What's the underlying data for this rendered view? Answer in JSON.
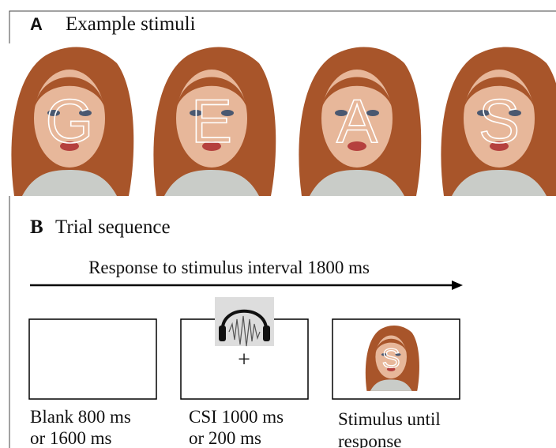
{
  "panel_a": {
    "label": "A",
    "title": "Example stimuli",
    "stimuli": [
      "G",
      "E",
      "A",
      "S"
    ]
  },
  "panel_b": {
    "label": "B",
    "title": "Trial sequence",
    "interval": "Response to stimulus interval 1800 ms",
    "fixation": "+",
    "stimulus_letter": "S",
    "screens": [
      {
        "caption": [
          "Blank 800 ms",
          "or 1600 ms"
        ]
      },
      {
        "caption": [
          "CSI 1000 ms",
          "or 200 ms"
        ]
      },
      {
        "caption": [
          "Stimulus until",
          "response"
        ]
      }
    ]
  }
}
